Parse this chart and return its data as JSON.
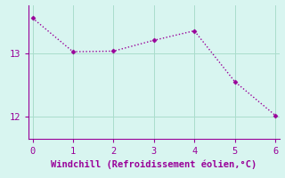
{
  "x": [
    0,
    1,
    2,
    3,
    4,
    5,
    6
  ],
  "y": [
    13.55,
    13.02,
    13.03,
    13.2,
    13.35,
    12.55,
    12.02
  ],
  "line_color": "#990099",
  "marker_color": "#990099",
  "bg_color": "#d8f5f0",
  "grid_color": "#aaddcc",
  "spine_color": "#990099",
  "tick_color": "#990099",
  "xlabel": "Windchill (Refroidissement éolien,°C)",
  "xlabel_color": "#990099",
  "xlabel_fontsize": 7.5,
  "xlim": [
    -0.1,
    6.1
  ],
  "ylim": [
    11.65,
    13.75
  ],
  "yticks": [
    12,
    13
  ],
  "xticks": [
    0,
    1,
    2,
    3,
    4,
    5,
    6
  ],
  "tick_fontsize": 7.5,
  "figsize": [
    3.2,
    2.0
  ],
  "dpi": 100
}
